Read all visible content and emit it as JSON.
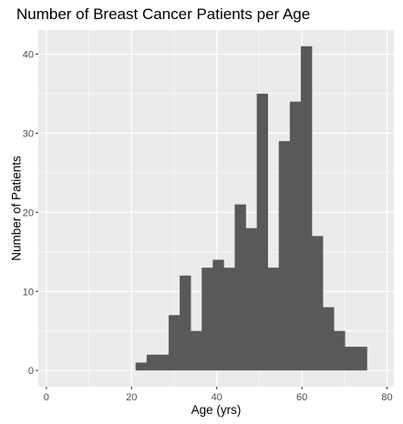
{
  "chart_data": {
    "type": "bar",
    "title": "Number of Breast Cancer Patients per Age",
    "xlabel": "Age (yrs)",
    "ylabel": "Number of Patients",
    "xlim": [
      -1.9,
      81.6
    ],
    "ylim": [
      -2.05,
      43.05
    ],
    "x_ticks": [
      0,
      20,
      40,
      60,
      80
    ],
    "y_ticks": [
      0,
      10,
      20,
      30,
      40
    ],
    "bin_width": 2.586,
    "bins": [
      {
        "start": 20.95,
        "count": 1
      },
      {
        "start": 23.54,
        "count": 2
      },
      {
        "start": 26.12,
        "count": 2
      },
      {
        "start": 28.71,
        "count": 7
      },
      {
        "start": 31.3,
        "count": 12
      },
      {
        "start": 33.88,
        "count": 5
      },
      {
        "start": 36.47,
        "count": 13
      },
      {
        "start": 39.06,
        "count": 14
      },
      {
        "start": 41.64,
        "count": 13
      },
      {
        "start": 44.23,
        "count": 21
      },
      {
        "start": 46.81,
        "count": 18
      },
      {
        "start": 49.4,
        "count": 35
      },
      {
        "start": 51.99,
        "count": 13
      },
      {
        "start": 54.57,
        "count": 29
      },
      {
        "start": 57.16,
        "count": 34
      },
      {
        "start": 59.75,
        "count": 41
      },
      {
        "start": 62.33,
        "count": 17
      },
      {
        "start": 64.92,
        "count": 8
      },
      {
        "start": 67.5,
        "count": 5
      },
      {
        "start": 70.09,
        "count": 3
      },
      {
        "start": 72.68,
        "count": 3
      }
    ],
    "grid": true,
    "bar_color": "#595959",
    "panel_color": "#ebebeb",
    "grid_color": "#ffffff"
  }
}
